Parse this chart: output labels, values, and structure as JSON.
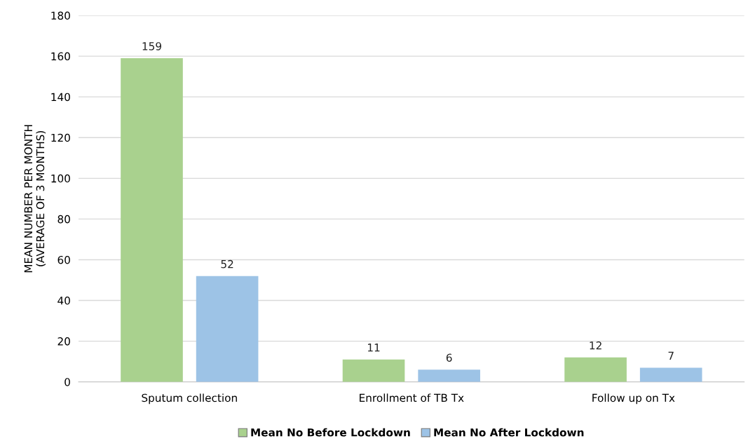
{
  "chart_data": {
    "type": "bar",
    "ylabel": "MEAN NUMBER PER MONTH\n(AVERAGE OF 3 MONTHS)",
    "categories": [
      "Sputum collection",
      "Enrollment of TB Tx",
      "Follow up on Tx"
    ],
    "series": [
      {
        "name": "Mean No Before Lockdown",
        "color": "#a9d18e",
        "values": [
          159,
          11,
          12
        ]
      },
      {
        "name": "Mean No After Lockdown",
        "color": "#9dc3e6",
        "values": [
          52,
          6,
          7
        ]
      }
    ],
    "ylim": [
      0,
      180
    ],
    "yticks": [
      0,
      20,
      40,
      60,
      80,
      100,
      120,
      140,
      160,
      180
    ],
    "grid": "y",
    "legend": "bottom",
    "data_labels": true
  }
}
